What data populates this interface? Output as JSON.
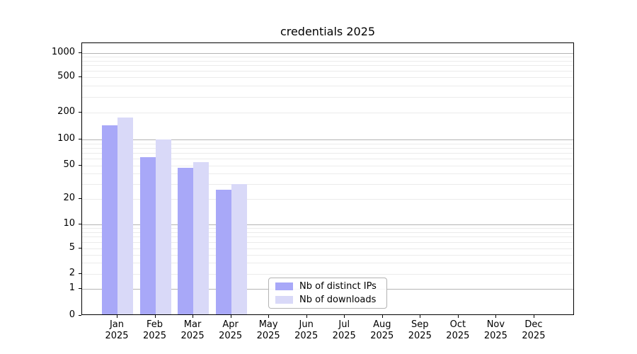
{
  "title": "credentials 2025",
  "chart_data": {
    "type": "bar",
    "title": "credentials 2025",
    "months": [
      "Jan",
      "Feb",
      "Mar",
      "Apr",
      "May",
      "Jun",
      "Jul",
      "Aug",
      "Sep",
      "Oct",
      "Nov",
      "Dec"
    ],
    "year": "2025",
    "series": [
      {
        "name": "Nb of distinct IPs",
        "color": "#a8a8f8",
        "values": [
          140,
          60,
          45,
          25,
          0,
          0,
          0,
          0,
          0,
          0,
          0,
          0
        ]
      },
      {
        "name": "Nb of downloads",
        "color": "#d9d9f8",
        "values": [
          170,
          96,
          53,
          29,
          0,
          0,
          0,
          0,
          0,
          0,
          0,
          0
        ]
      }
    ],
    "xlabel": "",
    "ylabel": "",
    "y_scale": "symlog",
    "y_ticks": [
      0,
      1,
      2,
      5,
      10,
      20,
      50,
      100,
      200,
      500,
      1000
    ],
    "ylim": [
      0,
      1300
    ],
    "grid": "horizontal",
    "legend_position": "lower-center-inside"
  }
}
